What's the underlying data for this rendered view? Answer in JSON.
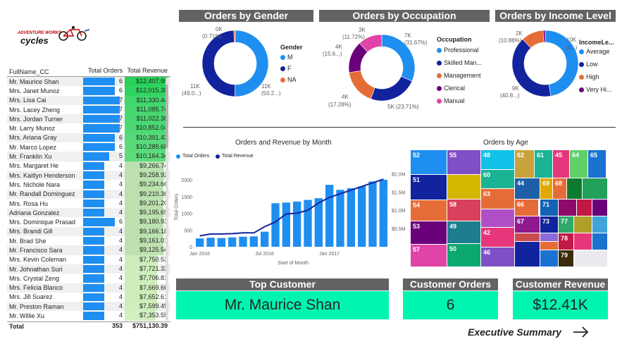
{
  "logo": {
    "line1": "ADVENTURE WORKS",
    "line2": "cycles"
  },
  "table": {
    "headers": [
      "FullName_CC",
      "Total Orders",
      "Total Revenue"
    ],
    "rows": [
      {
        "name": "Mr. Maurice Shan",
        "orders": 6,
        "revenue": "$12,407.95"
      },
      {
        "name": "Mrs. Janet Munoz",
        "orders": 6,
        "revenue": "$12,015.39"
      },
      {
        "name": "Mrs. Lisa Cai",
        "orders": 7,
        "revenue": "$11,330.44"
      },
      {
        "name": "Mrs. Lacey Zheng",
        "orders": 7,
        "revenue": "$11,085.74"
      },
      {
        "name": "Mrs. Jordan Turner",
        "orders": 7,
        "revenue": "$11,022.38"
      },
      {
        "name": "Mr. Larry Munoz",
        "orders": 7,
        "revenue": "$10,852.04"
      },
      {
        "name": "Mrs. Ariana Gray",
        "orders": 6,
        "revenue": "$10,391.42"
      },
      {
        "name": "Mr. Marco Lopez",
        "orders": 6,
        "revenue": "$10,289.68"
      },
      {
        "name": "Mr. Franklin Xu",
        "orders": 5,
        "revenue": "$10,164.34"
      },
      {
        "name": "Mrs. Margaret He",
        "orders": 4,
        "revenue": "$9,266.74"
      },
      {
        "name": "Mrs. Kaitlyn Henderson",
        "orders": 4,
        "revenue": "$9,258.92"
      },
      {
        "name": "Mrs. Nichole Nara",
        "orders": 4,
        "revenue": "$9,234.66"
      },
      {
        "name": "Mr. Randall Dominguez",
        "orders": 4,
        "revenue": "$9,210.36"
      },
      {
        "name": "Mrs. Rosa Hu",
        "orders": 4,
        "revenue": "$9,201.20"
      },
      {
        "name": "Adriana Gonzalez",
        "orders": 4,
        "revenue": "$9,195.69"
      },
      {
        "name": "Mrs. Dominique Prasad",
        "orders": 6,
        "revenue": "$9,180.93"
      },
      {
        "name": "Mrs. Brandi Gill",
        "orders": 4,
        "revenue": "$9,166.18"
      },
      {
        "name": "Mr. Brad She",
        "orders": 4,
        "revenue": "$9,161.01"
      },
      {
        "name": "Mr. Francisco Sara",
        "orders": 4,
        "revenue": "$9,125.54"
      },
      {
        "name": "Mrs. Kevin Coleman",
        "orders": 4,
        "revenue": "$7,750.53"
      },
      {
        "name": "Mr. Johnathan Suri",
        "orders": 4,
        "revenue": "$7,721.33"
      },
      {
        "name": "Mrs. Crystal Zeng",
        "orders": 4,
        "revenue": "$7,706.81"
      },
      {
        "name": "Mrs. Felicia Blanco",
        "orders": 4,
        "revenue": "$7,669.66"
      },
      {
        "name": "Mrs. Jill Suarez",
        "orders": 4,
        "revenue": "$7,652.61"
      },
      {
        "name": "Mr. Preston Raman",
        "orders": 4,
        "revenue": "$7,599.49"
      },
      {
        "name": "Mr. Willie Xu",
        "orders": 4,
        "revenue": "$7,353.55"
      }
    ],
    "total": {
      "label": "Total",
      "orders": "353",
      "revenue": "$751,130.39"
    }
  },
  "gender": {
    "title": "Orders by Gender",
    "legend_title": "Gender",
    "items": [
      {
        "name": "M",
        "color": "#1f8ef1"
      },
      {
        "name": "F",
        "color": "#12239e"
      },
      {
        "name": "NA",
        "color": "#e66c37"
      }
    ],
    "labels": [
      "0K",
      "(0.71%)",
      "11K",
      "(50.2...)",
      "11K",
      "(49.0...)"
    ]
  },
  "occupation": {
    "title": "Orders by Occupation",
    "legend_title": "Occupation",
    "items": [
      {
        "name": "Professional",
        "color": "#1f8ef1"
      },
      {
        "name": "Skilled Man...",
        "color": "#12239e"
      },
      {
        "name": "Management",
        "color": "#e66c37"
      },
      {
        "name": "Clerical",
        "color": "#6b007b"
      },
      {
        "name": "Manual",
        "color": "#e044a7"
      }
    ],
    "labels": [
      "3K",
      "(11.72%)",
      "7K",
      "(31.67%)",
      "4K",
      "(15.6...)",
      "4K",
      "(17.28%)",
      "5K (23.71%)"
    ]
  },
  "income": {
    "title": "Orders by Income Level",
    "legend_title": "IncomeLe...",
    "items": [
      {
        "name": "Average",
        "color": "#1f8ef1"
      },
      {
        "name": "Low",
        "color": "#12239e"
      },
      {
        "name": "High",
        "color": "#e66c37"
      },
      {
        "name": "Very Hi...",
        "color": "#6b007b"
      }
    ],
    "labels": [
      "2K",
      "(10.88%)",
      "10K",
      "(4...)",
      "9K",
      "(40.8...)"
    ]
  },
  "monthly": {
    "title": "Orders and Revenue by Month",
    "legend": [
      "Total Orders",
      "Total Revenue"
    ],
    "y_left_label": "Total Orders",
    "x_label": "Start of Month",
    "y_left_ticks": [
      "0",
      "500",
      "1000",
      "1500",
      "2000"
    ],
    "y_right_ticks": [
      "$0.5M",
      "$1.0M",
      "$1.5M",
      "$2.0M"
    ],
    "x_ticks": [
      "Jan 2016",
      "Jul 2016",
      "Jan 2017"
    ]
  },
  "chart_data": [
    {
      "type": "pie",
      "title": "Orders by Gender",
      "categories": [
        "M",
        "F",
        "NA"
      ],
      "values": [
        50.2,
        49.09,
        0.71
      ],
      "colors": [
        "#1f8ef1",
        "#12239e",
        "#e66c37"
      ]
    },
    {
      "type": "pie",
      "title": "Orders by Occupation",
      "categories": [
        "Professional",
        "Skilled Manual",
        "Management",
        "Clerical",
        "Manual"
      ],
      "values": [
        31.67,
        23.71,
        17.28,
        15.62,
        11.72
      ],
      "colors": [
        "#1f8ef1",
        "#12239e",
        "#e66c37",
        "#6b007b",
        "#e044a7"
      ]
    },
    {
      "type": "pie",
      "title": "Orders by Income Level",
      "categories": [
        "Average",
        "Low",
        "High",
        "Very High"
      ],
      "values": [
        47.3,
        40.8,
        10.88,
        1.02
      ],
      "colors": [
        "#1f8ef1",
        "#12239e",
        "#e66c37",
        "#6b007b"
      ]
    },
    {
      "type": "bar",
      "title": "Orders and Revenue by Month",
      "categories": [
        "Jan 2016",
        "Feb 2016",
        "Mar 2016",
        "Apr 2016",
        "May 2016",
        "Jun 2016",
        "Jul 2016",
        "Aug 2016",
        "Sep 2016",
        "Oct 2016",
        "Nov 2016",
        "Dec 2016",
        "Jan 2017",
        "Feb 2017",
        "Mar 2017",
        "Apr 2017",
        "May 2017",
        "Jun 2017"
      ],
      "series": [
        {
          "name": "Total Orders",
          "values": [
            250,
            270,
            260,
            280,
            300,
            310,
            450,
            1300,
            1320,
            1350,
            1400,
            1450,
            1850,
            1700,
            1750,
            1800,
            1950,
            2000
          ]
        },
        {
          "name": "Total Revenue",
          "values": [
            0.3,
            0.35,
            0.35,
            0.36,
            0.38,
            0.38,
            0.55,
            0.68,
            0.9,
            0.92,
            1.0,
            1.2,
            1.35,
            1.45,
            1.55,
            1.65,
            1.75,
            1.85
          ]
        }
      ],
      "ylim": [
        0,
        2400
      ],
      "ylabel": "Total Orders",
      "xlabel": "Start of Month"
    },
    {
      "type": "heatmap",
      "title": "Orders by Age",
      "categories": [
        "52",
        "55",
        "48",
        "62",
        "61",
        "45",
        "64",
        "65",
        "51",
        "60",
        "44",
        "69",
        "68",
        "54",
        "58",
        "63",
        "66",
        "71",
        "53",
        "49",
        "67",
        "73",
        "77",
        "57",
        "50",
        "46",
        "42",
        "78",
        "79"
      ]
    }
  ],
  "cards": {
    "top_customer": {
      "title": "Top Customer",
      "value": "Mr. Maurice Shan"
    },
    "customer_orders": {
      "title": "Customer Orders",
      "value": "6"
    },
    "customer_revenue": {
      "title": "Customer Revenue",
      "value": "$12.41K"
    }
  },
  "nav": {
    "label": "Executive Summary"
  }
}
